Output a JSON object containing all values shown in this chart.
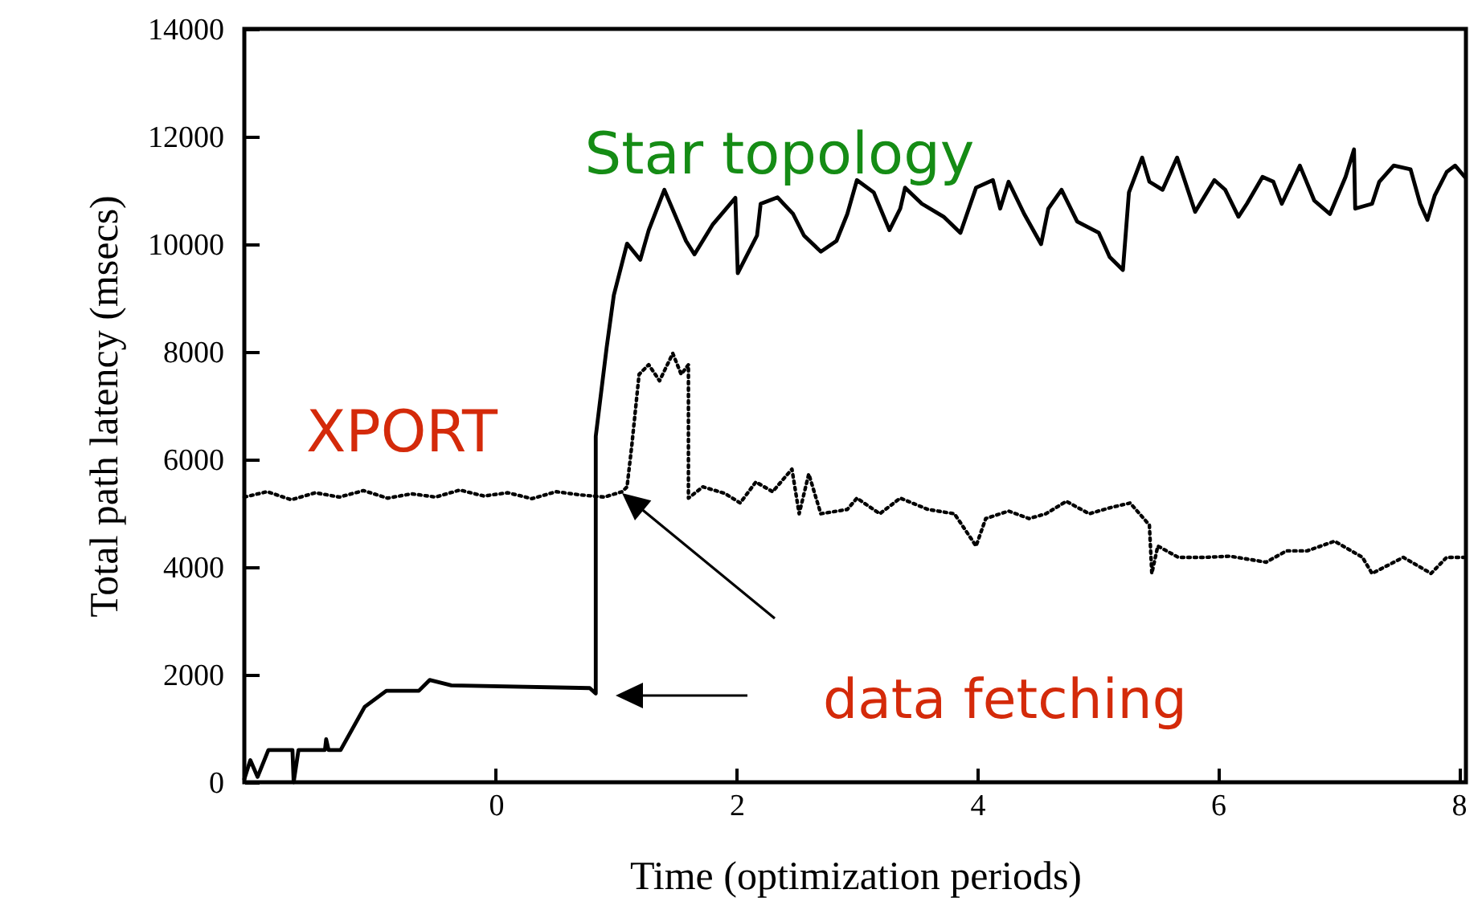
{
  "chart_data": {
    "type": "line",
    "xlabel": "Time (optimization periods)",
    "ylabel": "Total path latency (msecs)",
    "xlim": [
      -2.09,
      8.06
    ],
    "xticks": [
      0,
      2,
      4,
      6,
      8
    ],
    "ylim": [
      0,
      14000
    ],
    "yticks": [
      0,
      2000,
      4000,
      6000,
      8000,
      10000,
      12000,
      14000
    ],
    "annotations": [
      "data fetching"
    ],
    "series": [
      {
        "name": "Star topology",
        "color": "#000000",
        "line_style": "solid",
        "x": [
          -2.09,
          -2.04,
          -1.98,
          -1.89,
          -1.69,
          -1.68,
          -1.64,
          -1.42,
          -1.41,
          -1.39,
          -1.29,
          -1.09,
          -0.91,
          -0.64,
          -0.55,
          -0.37,
          0.78,
          0.83,
          0.83,
          0.92,
          0.98,
          1.09,
          1.2,
          1.27,
          1.4,
          1.58,
          1.65,
          1.8,
          1.99,
          2.01,
          2.17,
          2.2,
          2.34,
          2.47,
          2.56,
          2.7,
          2.83,
          2.92,
          3.0,
          3.14,
          3.27,
          3.36,
          3.4,
          3.54,
          3.72,
          3.86,
          3.99,
          4.13,
          4.19,
          4.26,
          4.39,
          4.53,
          4.59,
          4.7,
          4.83,
          5.01,
          5.1,
          5.21,
          5.26,
          5.37,
          5.43,
          5.54,
          5.66,
          5.81,
          5.97,
          6.06,
          6.17,
          6.24,
          6.37,
          6.46,
          6.53,
          6.68,
          6.8,
          6.93,
          7.06,
          7.13,
          7.14,
          7.28,
          7.34,
          7.46,
          7.6,
          7.68,
          7.74,
          7.8,
          7.9,
          7.97,
          8.05
        ],
        "values": [
          60,
          410,
          100,
          600,
          600,
          0,
          600,
          600,
          800,
          600,
          600,
          1400,
          1700,
          1700,
          1900,
          1800,
          1750,
          1650,
          6430,
          8070,
          9050,
          10010,
          9710,
          10260,
          11010,
          10060,
          9810,
          10360,
          10860,
          9460,
          10160,
          10750,
          10870,
          10560,
          10160,
          9860,
          10060,
          10560,
          11190,
          10960,
          10260,
          10660,
          11050,
          10750,
          10510,
          10210,
          11050,
          11190,
          10660,
          11160,
          10560,
          10000,
          10660,
          11010,
          10420,
          10210,
          9760,
          9520,
          10960,
          11610,
          11160,
          11010,
          11610,
          10600,
          11190,
          11010,
          10510,
          10750,
          11250,
          11160,
          10750,
          11460,
          10810,
          10560,
          11250,
          11760,
          10660,
          10750,
          11160,
          11460,
          11390,
          10750,
          10450,
          10900,
          11340,
          11460,
          11250
        ]
      },
      {
        "name": "XPORT",
        "color": "#000000",
        "line_style": "dotted",
        "x": [
          -2.09,
          -1.9,
          -1.7,
          -1.5,
          -1.3,
          -1.1,
          -0.9,
          -0.7,
          -0.5,
          -0.3,
          -0.1,
          0.1,
          0.3,
          0.5,
          0.7,
          0.9,
          1.05,
          1.09,
          1.13,
          1.19,
          1.27,
          1.36,
          1.47,
          1.54,
          1.6,
          1.6,
          1.72,
          1.9,
          2.03,
          2.16,
          2.3,
          2.46,
          2.52,
          2.6,
          2.7,
          2.92,
          3.0,
          3.19,
          3.36,
          3.59,
          3.81,
          3.99,
          4.07,
          4.26,
          4.43,
          4.57,
          4.74,
          4.93,
          5.1,
          5.27,
          5.43,
          5.45,
          5.5,
          5.67,
          5.9,
          6.1,
          6.4,
          6.57,
          6.74,
          6.97,
          7.2,
          7.28,
          7.54,
          7.77,
          7.9,
          8.04
        ],
        "values": [
          5300,
          5400,
          5250,
          5380,
          5300,
          5420,
          5280,
          5360,
          5300,
          5430,
          5320,
          5380,
          5270,
          5400,
          5340,
          5300,
          5400,
          5490,
          6270,
          7580,
          7760,
          7460,
          7970,
          7580,
          7760,
          5280,
          5490,
          5370,
          5190,
          5580,
          5400,
          5820,
          4990,
          5730,
          4990,
          5070,
          5280,
          4990,
          5280,
          5070,
          4990,
          4390,
          4900,
          5040,
          4900,
          4990,
          5220,
          4990,
          5100,
          5190,
          4780,
          3880,
          4390,
          4180,
          4180,
          4200,
          4090,
          4300,
          4300,
          4480,
          4180,
          3880,
          4180,
          3880,
          4180,
          4180
        ]
      }
    ]
  }
}
